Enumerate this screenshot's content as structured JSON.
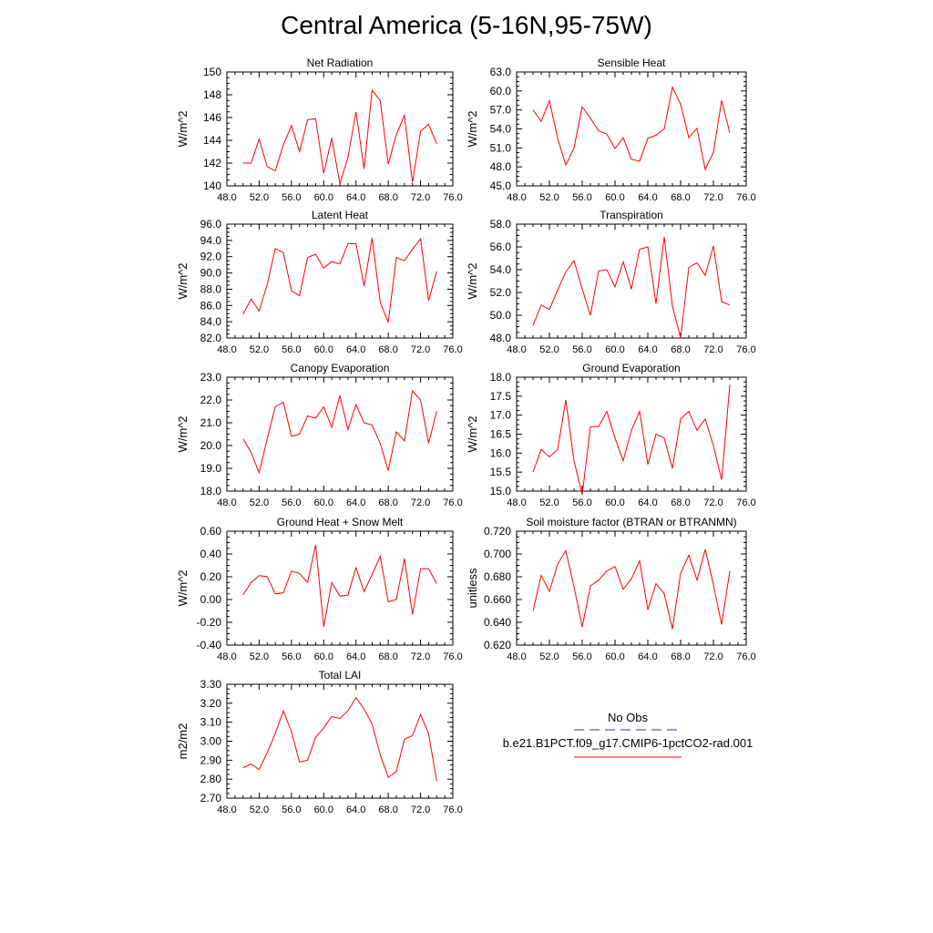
{
  "figure": {
    "title": "Central America (5-16N,95-75W)"
  },
  "legend": {
    "entries": [
      {
        "label": "No Obs",
        "color": "#3333aa",
        "dash": "dashed"
      },
      {
        "label": "b.e21.B1PCT.f09_g17.CMIP6-1pctCO2-rad.001",
        "color": "#ff0000",
        "dash": "solid"
      }
    ]
  },
  "chart_data": [
    {
      "type": "line",
      "title": "Net Radiation",
      "ylabel": "W/m^2",
      "xlim": [
        48,
        76
      ],
      "ylim": [
        140,
        150
      ],
      "xticks": [
        "48.0",
        "52.0",
        "56.0",
        "60.0",
        "64.0",
        "68.0",
        "72.0",
        "76.0"
      ],
      "yticks": [
        "140",
        "142",
        "144",
        "146",
        "148",
        "150"
      ],
      "x": [
        50,
        51,
        52,
        53,
        54,
        55,
        56,
        57,
        58,
        59,
        60,
        61,
        62,
        63,
        64,
        65,
        66,
        67,
        68,
        69,
        70,
        71,
        72,
        73,
        74
      ],
      "series": [
        {
          "color": "#ff0000",
          "values": [
            142.0,
            142.0,
            144.1,
            141.7,
            141.3,
            143.6,
            145.3,
            143.0,
            145.8,
            145.9,
            141.1,
            144.2,
            140.2,
            142.5,
            146.5,
            141.5,
            148.4,
            147.5,
            141.9,
            144.5,
            146.2,
            140.3,
            144.8,
            145.4,
            143.7
          ]
        }
      ]
    },
    {
      "type": "line",
      "title": "Sensible Heat",
      "ylabel": "W/m^2",
      "xlim": [
        48,
        76
      ],
      "ylim": [
        45,
        63
      ],
      "xticks": [
        "48.0",
        "52.0",
        "56.0",
        "60.0",
        "64.0",
        "68.0",
        "72.0",
        "76.0"
      ],
      "yticks": [
        "45.0",
        "48.0",
        "51.0",
        "54.0",
        "57.0",
        "60.0",
        "63.0"
      ],
      "x": [
        50,
        51,
        52,
        53,
        54,
        55,
        56,
        57,
        58,
        59,
        60,
        61,
        62,
        63,
        64,
        65,
        66,
        67,
        68,
        69,
        70,
        71,
        72,
        73,
        74
      ],
      "series": [
        {
          "color": "#ff0000",
          "values": [
            57.0,
            55.2,
            58.5,
            52.5,
            48.3,
            51.0,
            57.5,
            55.7,
            53.7,
            53.2,
            50.9,
            52.6,
            49.2,
            48.9,
            52.5,
            53.0,
            54.0,
            60.6,
            57.9,
            52.6,
            54.1,
            47.6,
            50.3,
            58.5,
            53.4
          ]
        }
      ]
    },
    {
      "type": "line",
      "title": "Latent Heat",
      "ylabel": "W/m^2",
      "xlim": [
        48,
        76
      ],
      "ylim": [
        82,
        96
      ],
      "xticks": [
        "48.0",
        "52.0",
        "56.0",
        "60.0",
        "64.0",
        "68.0",
        "72.0",
        "76.0"
      ],
      "yticks": [
        "82.0",
        "84.0",
        "86.0",
        "88.0",
        "90.0",
        "92.0",
        "94.0",
        "96.0"
      ],
      "x": [
        50,
        51,
        52,
        53,
        54,
        55,
        56,
        57,
        58,
        59,
        60,
        61,
        62,
        63,
        64,
        65,
        66,
        67,
        68,
        69,
        70,
        71,
        72,
        73,
        74
      ],
      "series": [
        {
          "color": "#ff0000",
          "values": [
            84.9,
            86.8,
            85.3,
            88.6,
            93.0,
            92.5,
            87.8,
            87.2,
            91.9,
            92.3,
            90.6,
            91.4,
            91.1,
            93.6,
            93.6,
            88.4,
            94.3,
            86.4,
            83.9,
            91.9,
            91.5,
            92.9,
            94.2,
            86.6,
            90.2
          ]
        }
      ]
    },
    {
      "type": "line",
      "title": "Transpiration",
      "ylabel": "W/m^2",
      "xlim": [
        48,
        76
      ],
      "ylim": [
        48,
        58
      ],
      "xticks": [
        "48.0",
        "52.0",
        "56.0",
        "60.0",
        "64.0",
        "68.0",
        "72.0",
        "76.0"
      ],
      "yticks": [
        "48.0",
        "50.0",
        "52.0",
        "54.0",
        "56.0",
        "58.0"
      ],
      "x": [
        50,
        51,
        52,
        53,
        54,
        55,
        56,
        57,
        58,
        59,
        60,
        61,
        62,
        63,
        64,
        65,
        66,
        67,
        68,
        69,
        70,
        71,
        72,
        73,
        74
      ],
      "series": [
        {
          "color": "#ff0000",
          "values": [
            49.1,
            50.9,
            50.5,
            52.2,
            53.8,
            54.8,
            52.3,
            50.0,
            53.9,
            54.0,
            52.5,
            54.7,
            52.3,
            55.8,
            56.0,
            51.0,
            56.9,
            50.8,
            48.0,
            54.2,
            54.6,
            53.5,
            56.1,
            51.2,
            50.9
          ]
        }
      ]
    },
    {
      "type": "line",
      "title": "Canopy Evaporation",
      "ylabel": "W/m^2",
      "xlim": [
        48,
        76
      ],
      "ylim": [
        18,
        23
      ],
      "xticks": [
        "48.0",
        "52.0",
        "56.0",
        "60.0",
        "64.0",
        "68.0",
        "72.0",
        "76.0"
      ],
      "yticks": [
        "18.0",
        "19.0",
        "20.0",
        "21.0",
        "22.0",
        "23.0"
      ],
      "x": [
        50,
        51,
        52,
        53,
        54,
        55,
        56,
        57,
        58,
        59,
        60,
        61,
        62,
        63,
        64,
        65,
        66,
        67,
        68,
        69,
        70,
        71,
        72,
        73,
        74
      ],
      "series": [
        {
          "color": "#ff0000",
          "values": [
            20.3,
            19.7,
            18.8,
            20.3,
            21.7,
            21.9,
            20.4,
            20.5,
            21.3,
            21.2,
            21.7,
            20.8,
            22.2,
            20.7,
            21.8,
            21.0,
            20.9,
            20.1,
            18.9,
            20.6,
            20.2,
            22.4,
            22.0,
            20.1,
            21.5
          ]
        }
      ]
    },
    {
      "type": "line",
      "title": "Ground Evaporation",
      "ylabel": "W/m^2",
      "xlim": [
        48,
        76
      ],
      "ylim": [
        15,
        18
      ],
      "xticks": [
        "48.0",
        "52.0",
        "56.0",
        "60.0",
        "64.0",
        "68.0",
        "72.0",
        "76.0"
      ],
      "yticks": [
        "15.0",
        "15.5",
        "16.0",
        "16.5",
        "17.0",
        "17.5",
        "18.0"
      ],
      "x": [
        50,
        51,
        52,
        53,
        54,
        55,
        56,
        57,
        58,
        59,
        60,
        61,
        62,
        63,
        64,
        65,
        66,
        67,
        68,
        69,
        70,
        71,
        72,
        73,
        74
      ],
      "series": [
        {
          "color": "#ff0000",
          "values": [
            15.5,
            16.1,
            15.9,
            16.1,
            17.4,
            15.8,
            14.9,
            16.7,
            16.7,
            17.1,
            16.4,
            15.8,
            16.6,
            17.1,
            15.7,
            16.5,
            16.4,
            15.6,
            16.9,
            17.1,
            16.6,
            16.9,
            16.2,
            15.3,
            17.8
          ]
        }
      ]
    },
    {
      "type": "line",
      "title": "Ground Heat + Snow Melt",
      "ylabel": "W/m^2",
      "xlim": [
        48,
        76
      ],
      "ylim": [
        -0.4,
        0.6
      ],
      "xticks": [
        "48.0",
        "52.0",
        "56.0",
        "60.0",
        "64.0",
        "68.0",
        "72.0",
        "76.0"
      ],
      "yticks": [
        "-0.40",
        "-0.20",
        "0.00",
        "0.20",
        "0.40",
        "0.60"
      ],
      "x": [
        50,
        51,
        52,
        53,
        54,
        55,
        56,
        57,
        58,
        59,
        60,
        61,
        62,
        63,
        64,
        65,
        66,
        67,
        68,
        69,
        70,
        71,
        72,
        73,
        74
      ],
      "series": [
        {
          "color": "#ff0000",
          "values": [
            0.04,
            0.15,
            0.21,
            0.2,
            0.05,
            0.06,
            0.25,
            0.23,
            0.15,
            0.48,
            -0.24,
            0.15,
            0.03,
            0.04,
            0.28,
            0.07,
            0.22,
            0.38,
            -0.02,
            0.0,
            0.36,
            -0.13,
            0.27,
            0.27,
            0.14
          ]
        }
      ]
    },
    {
      "type": "line",
      "title": "Soil moisture factor (BTRAN or BTRANMN)",
      "ylabel": "unitless",
      "xlim": [
        48,
        76
      ],
      "ylim": [
        0.62,
        0.72
      ],
      "xticks": [
        "48.0",
        "52.0",
        "56.0",
        "60.0",
        "64.0",
        "68.0",
        "72.0",
        "76.0"
      ],
      "yticks": [
        "0.620",
        "0.640",
        "0.660",
        "0.680",
        "0.700",
        "0.720"
      ],
      "x": [
        50,
        51,
        52,
        53,
        54,
        55,
        56,
        57,
        58,
        59,
        60,
        61,
        62,
        63,
        64,
        65,
        66,
        67,
        68,
        69,
        70,
        71,
        72,
        73,
        74
      ],
      "series": [
        {
          "color": "#ff0000",
          "values": [
            0.65,
            0.681,
            0.667,
            0.691,
            0.703,
            0.671,
            0.636,
            0.672,
            0.677,
            0.685,
            0.689,
            0.669,
            0.678,
            0.694,
            0.651,
            0.674,
            0.665,
            0.634,
            0.683,
            0.699,
            0.677,
            0.704,
            0.673,
            0.638,
            0.685
          ]
        }
      ]
    },
    {
      "type": "line",
      "title": "Total LAI",
      "ylabel": "m2/m2",
      "xlim": [
        48,
        76
      ],
      "ylim": [
        2.7,
        3.3
      ],
      "xticks": [
        "48.0",
        "52.0",
        "56.0",
        "60.0",
        "64.0",
        "68.0",
        "72.0",
        "76.0"
      ],
      "yticks": [
        "2.70",
        "2.80",
        "2.90",
        "3.00",
        "3.10",
        "3.20",
        "3.30"
      ],
      "x": [
        50,
        51,
        52,
        53,
        54,
        55,
        56,
        57,
        58,
        59,
        60,
        61,
        62,
        63,
        64,
        65,
        66,
        67,
        68,
        69,
        70,
        71,
        72,
        73,
        74
      ],
      "series": [
        {
          "color": "#ff0000",
          "values": [
            2.86,
            2.88,
            2.85,
            2.94,
            3.04,
            3.16,
            3.05,
            2.89,
            2.9,
            3.02,
            3.07,
            3.13,
            3.12,
            3.16,
            3.23,
            3.17,
            3.09,
            2.93,
            2.81,
            2.84,
            3.01,
            3.03,
            3.14,
            3.04,
            2.79
          ]
        }
      ]
    }
  ]
}
